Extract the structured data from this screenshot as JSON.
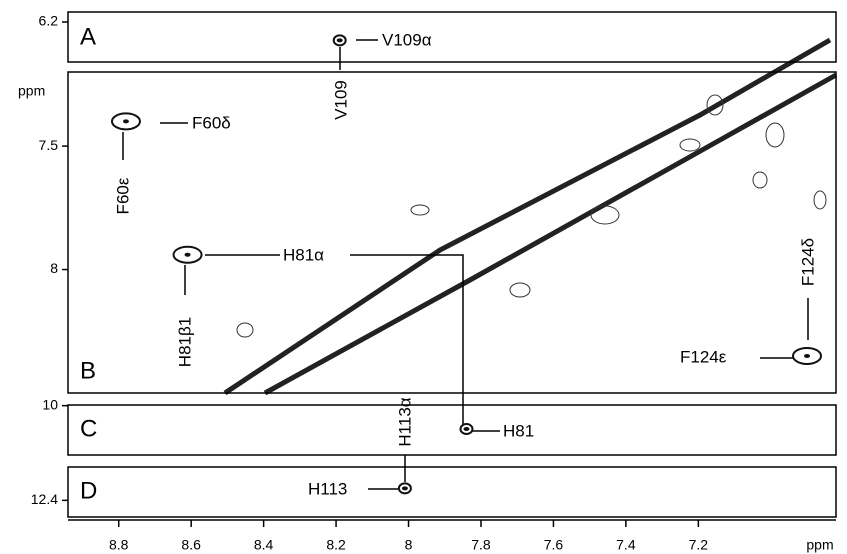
{
  "x_axis": {
    "label": "ppm",
    "lim": [
      8.94,
      6.82
    ],
    "ticks": [
      8.8,
      8.6,
      8.4,
      8.2,
      8.0,
      7.8,
      7.6,
      7.4,
      7.2
    ]
  },
  "panels": [
    {
      "name": "A",
      "ylim": [
        6.14,
        6.44
      ],
      "yticks": [
        6.2
      ]
    },
    {
      "name": "B",
      "ylim": [
        7.2,
        8.5
      ],
      "yticks": [
        7.5,
        8.0
      ],
      "y_label": "ppm"
    },
    {
      "name": "C",
      "ylim": [
        9.98,
        11.48
      ],
      "yticks": [
        10.0
      ]
    },
    {
      "name": "D",
      "ylim": [
        11.9,
        12.65
      ],
      "yticks": [
        12.4
      ]
    }
  ],
  "peaks": [
    {
      "panel": 0,
      "x": 8.19,
      "y": 6.31,
      "labels": [
        "V109α",
        "V109"
      ]
    },
    {
      "panel": 1,
      "x": 8.78,
      "y": 7.4,
      "labels": [
        "F60δ",
        "F60ε"
      ]
    },
    {
      "panel": 1,
      "x": 8.61,
      "y": 7.94,
      "labels": [
        "H81α",
        "H81β1"
      ]
    },
    {
      "panel": 1,
      "x": 6.9,
      "y": 8.35,
      "labels": [
        "F124δ",
        "F124ε"
      ]
    },
    {
      "panel": 2,
      "x": 7.84,
      "y": 10.7,
      "labels": [
        "H81"
      ]
    },
    {
      "panel": 3,
      "x": 8.01,
      "y": 12.22,
      "labels": [
        "H113",
        "H113α"
      ]
    }
  ]
}
